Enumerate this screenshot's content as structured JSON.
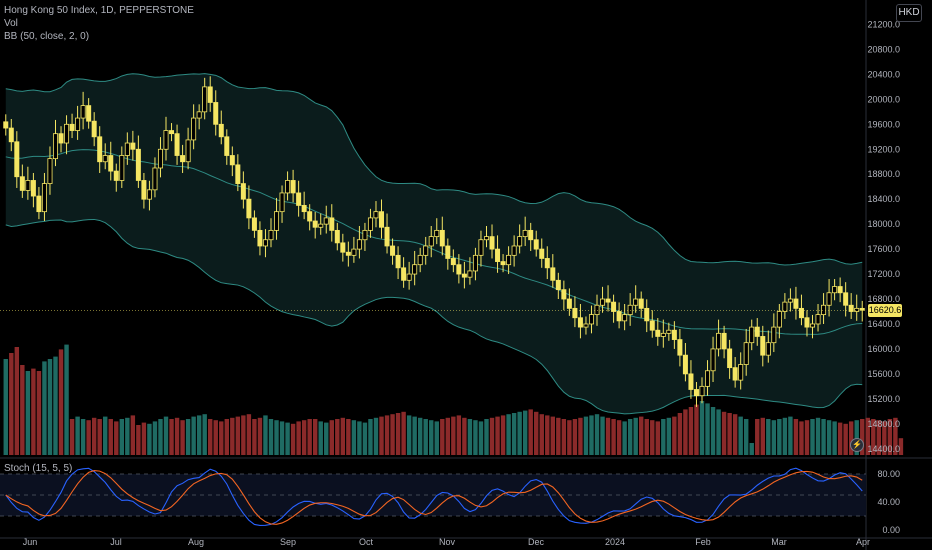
{
  "header": {
    "symbol_line": "Hong Kong 50 Index, 1D, PEPPERSTONE",
    "vol_label": "Vol",
    "bb_label": "BB (50, close, 2, 0)",
    "currency": "HKD"
  },
  "stoch_label": "Stoch (15, 5, 5)",
  "last_price_label": "16620.6",
  "colors": {
    "candle": "#f5e663",
    "bb_line": "#2e8b84",
    "bb_fill": "#0c1f1f",
    "vol_up": "#1f6b63",
    "vol_down": "#8b2a2a",
    "stoch_k": "#2962ff",
    "stoch_d": "#f26522"
  },
  "chart_data": [
    {
      "type": "candlestick",
      "x_ticks": [
        "Jun",
        "Jul",
        "Aug",
        "Sep",
        "Oct",
        "Nov",
        "Dec",
        "2024",
        "Feb",
        "Mar",
        "Apr"
      ],
      "y_ticks": [
        21200,
        20800,
        20400,
        20000,
        19600,
        19200,
        18800,
        18400,
        18000,
        17600,
        17200,
        16800,
        16400,
        16000,
        15600,
        15200,
        14800,
        14400
      ],
      "ylim": [
        14300,
        21400
      ],
      "close_path": [
        19540,
        19320,
        18760,
        18540,
        18700,
        18450,
        18200,
        18650,
        19050,
        19450,
        19300,
        19600,
        19500,
        19700,
        19900,
        19650,
        19400,
        19000,
        19100,
        18850,
        18700,
        19100,
        19300,
        19200,
        18700,
        18400,
        18550,
        18900,
        19200,
        19500,
        19450,
        19100,
        19000,
        19350,
        19700,
        19800,
        20200,
        19950,
        19600,
        19400,
        19100,
        18950,
        18650,
        18400,
        18100,
        17900,
        17650,
        17750,
        17900,
        18200,
        18500,
        18700,
        18500,
        18300,
        18200,
        18050,
        17950,
        18000,
        18100,
        17900,
        17700,
        17550,
        17500,
        17600,
        17750,
        17900,
        18100,
        18200,
        17950,
        17650,
        17500,
        17300,
        17100,
        17200,
        17350,
        17500,
        17650,
        17800,
        17900,
        17650,
        17450,
        17350,
        17200,
        17150,
        17250,
        17500,
        17750,
        17800,
        17600,
        17400,
        17350,
        17500,
        17650,
        17800,
        17900,
        17750,
        17600,
        17450,
        17300,
        17100,
        16950,
        16800,
        16650,
        16500,
        16350,
        16400,
        16550,
        16700,
        16800,
        16750,
        16600,
        16450,
        16550,
        16700,
        16800,
        16650,
        16450,
        16300,
        16200,
        16250,
        16300,
        16150,
        15900,
        15600,
        15350,
        15250,
        15400,
        15650,
        16000,
        16250,
        16000,
        15700,
        15500,
        15750,
        16100,
        16350,
        16200,
        15900,
        16100,
        16350,
        16600,
        16750,
        16800,
        16650,
        16500,
        16350,
        16400,
        16550,
        16700,
        16900,
        17000,
        16900,
        16700,
        16600,
        16650,
        16620
      ],
      "volume_path": [
        0.8,
        0.85,
        0.9,
        0.75,
        0.7,
        0.72,
        0.7,
        0.78,
        0.8,
        0.82,
        0.88,
        0.92,
        0.3,
        0.32,
        0.3,
        0.29,
        0.31,
        0.3,
        0.32,
        0.3,
        0.28,
        0.3,
        0.31,
        0.33,
        0.25,
        0.27,
        0.26,
        0.28,
        0.3,
        0.32,
        0.3,
        0.31,
        0.29,
        0.3,
        0.32,
        0.33,
        0.34,
        0.3,
        0.29,
        0.28,
        0.3,
        0.31,
        0.32,
        0.33,
        0.34,
        0.3,
        0.31,
        0.33,
        0.3,
        0.29,
        0.28,
        0.27,
        0.26,
        0.28,
        0.29,
        0.3,
        0.3,
        0.28,
        0.27,
        0.29,
        0.3,
        0.31,
        0.3,
        0.29,
        0.28,
        0.27,
        0.3,
        0.31,
        0.32,
        0.33,
        0.34,
        0.35,
        0.36,
        0.33,
        0.32,
        0.31,
        0.3,
        0.29,
        0.28,
        0.3,
        0.31,
        0.32,
        0.33,
        0.31,
        0.3,
        0.29,
        0.28,
        0.3,
        0.31,
        0.32,
        0.33,
        0.34,
        0.35,
        0.36,
        0.37,
        0.38,
        0.36,
        0.34,
        0.33,
        0.32,
        0.31,
        0.3,
        0.29,
        0.3,
        0.31,
        0.32,
        0.33,
        0.34,
        0.32,
        0.31,
        0.3,
        0.29,
        0.28,
        0.3,
        0.31,
        0.32,
        0.3,
        0.29,
        0.28,
        0.3,
        0.31,
        0.32,
        0.35,
        0.38,
        0.4,
        0.42,
        0.45,
        0.43,
        0.4,
        0.38,
        0.36,
        0.35,
        0.34,
        0.32,
        0.3,
        0.1,
        0.3,
        0.31,
        0.3,
        0.29,
        0.3,
        0.31,
        0.32,
        0.3,
        0.28,
        0.29,
        0.3,
        0.31,
        0.3,
        0.29,
        0.28,
        0.27,
        0.26,
        0.28,
        0.29,
        0.3,
        0.31,
        0.3,
        0.29,
        0.28,
        0.3,
        0.31,
        0.14
      ],
      "stoch_ticks": [
        80,
        40,
        0
      ],
      "stoch_ylim": [
        -10,
        100
      ]
    }
  ]
}
